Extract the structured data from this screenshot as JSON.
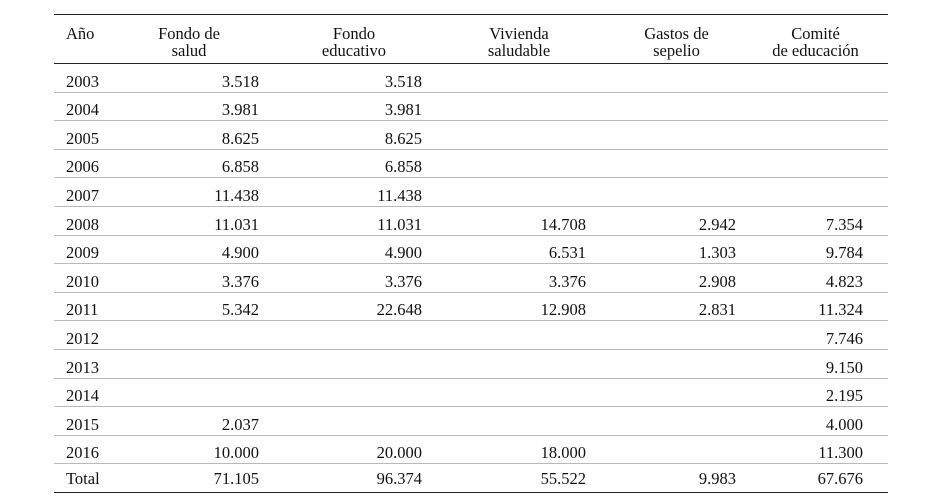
{
  "table": {
    "headers": {
      "year": "Año",
      "fondo_salud": [
        "Fondo de",
        "salud"
      ],
      "fondo_educativo": [
        "Fondo",
        "educativo"
      ],
      "vivienda": [
        "Vivienda",
        "saludable"
      ],
      "gastos": [
        "Gastos de",
        "sepelio"
      ],
      "comite": [
        "Comité",
        "de educación"
      ]
    },
    "rows": [
      {
        "year": "2003",
        "c1": "3.518",
        "c2": "3.518",
        "c3": "",
        "c4": "",
        "c5": ""
      },
      {
        "year": "2004",
        "c1": "3.981",
        "c2": "3.981",
        "c3": "",
        "c4": "",
        "c5": ""
      },
      {
        "year": "2005",
        "c1": "8.625",
        "c2": "8.625",
        "c3": "",
        "c4": "",
        "c5": ""
      },
      {
        "year": "2006",
        "c1": "6.858",
        "c2": "6.858",
        "c3": "",
        "c4": "",
        "c5": ""
      },
      {
        "year": "2007",
        "c1": "11.438",
        "c2": "11.438",
        "c3": "",
        "c4": "",
        "c5": ""
      },
      {
        "year": "2008",
        "c1": "11.031",
        "c2": "11.031",
        "c3": "14.708",
        "c4": "2.942",
        "c5": "7.354"
      },
      {
        "year": "2009",
        "c1": "4.900",
        "c2": "4.900",
        "c3": "6.531",
        "c4": "1.303",
        "c5": "9.784"
      },
      {
        "year": "2010",
        "c1": "3.376",
        "c2": "3.376",
        "c3": "3.376",
        "c4": "2.908",
        "c5": "4.823"
      },
      {
        "year": "2011",
        "c1": "5.342",
        "c2": "22.648",
        "c3": "12.908",
        "c4": "2.831",
        "c5": "11.324"
      },
      {
        "year": "2012",
        "c1": "",
        "c2": "",
        "c3": "",
        "c4": "",
        "c5": "7.746"
      },
      {
        "year": "2013",
        "c1": "",
        "c2": "",
        "c3": "",
        "c4": "",
        "c5": "9.150"
      },
      {
        "year": "2014",
        "c1": "",
        "c2": "",
        "c3": "",
        "c4": "",
        "c5": "2.195"
      },
      {
        "year": "2015",
        "c1": "2.037",
        "c2": "",
        "c3": "",
        "c4": "",
        "c5": "4.000"
      },
      {
        "year": "2016",
        "c1": "10.000",
        "c2": "20.000",
        "c3": "18.000",
        "c4": "",
        "c5": "11.300"
      }
    ],
    "total": {
      "label": "Total",
      "c1": "71.105",
      "c2": "96.374",
      "c3": "55.522",
      "c4": "9.983",
      "c5": "67.676"
    }
  }
}
